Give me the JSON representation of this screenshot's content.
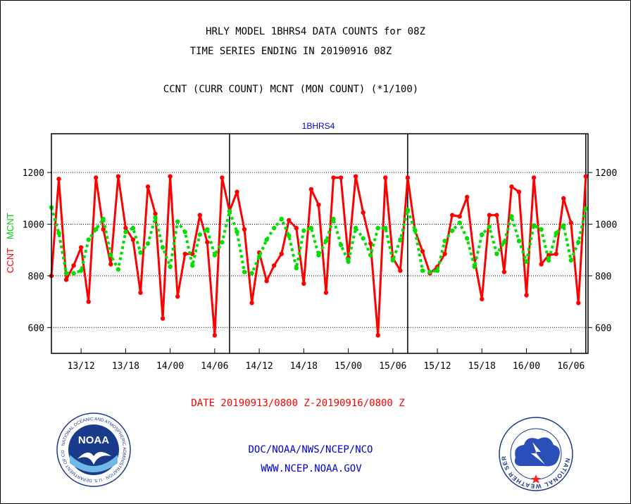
{
  "header": {
    "title_line1": "HRLY MODEL 1BHRS4 DATA COUNTS for 08Z",
    "title_line2": "TIME SERIES ENDING IN 20190916 08Z",
    "subtitle": "CCNT (CURR COUNT) MCNT (MON COUNT) (*1/100)"
  },
  "footer": {
    "date_range": "DATE 20190913/0800 Z-20190916/0800 Z",
    "org": "DOC/NOAA/NWS/NCEP/NCO",
    "url": "WWW.NCEP.NOAA.GOV"
  },
  "logos": {
    "noaa_text": "NOAA",
    "noaa_ring": "NATIONAL OCEANIC AND ATMOSPHERIC ADMINISTRATION · U.S. DEPARTMENT OF COMMERCE",
    "nws_ring": "NATIONAL WEATHER SERVICE"
  },
  "colors": {
    "ccnt": "#ff0000",
    "mcnt": "#00e000",
    "plot_title": "#0000cc",
    "footer_date": "#ff0000",
    "credits": "#0000cc"
  },
  "chart_data": {
    "type": "line",
    "title": "1BHRS4",
    "ylabel_left": [
      "CCNT",
      "MCNT"
    ],
    "ylim": [
      500,
      1350
    ],
    "yticks": [
      600,
      800,
      1000,
      1200
    ],
    "grid": "horizontal dotted lines at y ticks",
    "xlim": [
      8,
      80.3
    ],
    "xticks": [
      {
        "x": 12,
        "label": "13/12"
      },
      {
        "x": 18,
        "label": "13/18"
      },
      {
        "x": 24,
        "label": "14/00"
      },
      {
        "x": 30,
        "label": "14/06"
      },
      {
        "x": 36,
        "label": "14/12"
      },
      {
        "x": 42,
        "label": "14/18"
      },
      {
        "x": 48,
        "label": "15/00"
      },
      {
        "x": 54,
        "label": "15/06"
      },
      {
        "x": 60,
        "label": "15/12"
      },
      {
        "x": 66,
        "label": "15/18"
      },
      {
        "x": 72,
        "label": "16/00"
      },
      {
        "x": 78,
        "label": "16/06"
      }
    ],
    "day_separators": [
      32,
      56,
      80
    ],
    "x": [
      8,
      9,
      10,
      11,
      12,
      13,
      14,
      15,
      16,
      17,
      18,
      19,
      20,
      21,
      22,
      23,
      24,
      25,
      26,
      27,
      28,
      29,
      30,
      31,
      32,
      33,
      34,
      35,
      36,
      37,
      38,
      39,
      40,
      41,
      42,
      43,
      44,
      45,
      46,
      47,
      48,
      49,
      50,
      51,
      52,
      53,
      54,
      55,
      56,
      57,
      58,
      59,
      60,
      61,
      62,
      63,
      64,
      65,
      66,
      67,
      68,
      69,
      70,
      71,
      72,
      73,
      74,
      75,
      76,
      77,
      78,
      79,
      80
    ],
    "series": [
      {
        "name": "CCNT",
        "color": "#ff0000",
        "values": [
          800,
          1175,
          785,
          840,
          910,
          700,
          1180,
          980,
          845,
          1185,
          985,
          940,
          735,
          1145,
          1040,
          635,
          1185,
          720,
          885,
          885,
          1035,
          930,
          570,
          1180,
          1050,
          1125,
          980,
          695,
          890,
          780,
          840,
          885,
          1015,
          985,
          770,
          1135,
          1075,
          735,
          1180,
          1180,
          870,
          1185,
          1045,
          925,
          570,
          1180,
          870,
          820,
          1180,
          975,
          895,
          810,
          835,
          885,
          1035,
          1030,
          1105,
          865,
          710,
          1035,
          1035,
          815,
          1145,
          1125,
          725,
          1180,
          845,
          880,
          885,
          1100,
          1005,
          695,
          1185
        ]
      },
      {
        "name": "MCNT",
        "color": "#00e000",
        "values": [
          1065,
          965,
          810,
          810,
          820,
          940,
          980,
          1020,
          880,
          825,
          970,
          985,
          890,
          925,
          1025,
          910,
          835,
          1010,
          970,
          840,
          960,
          980,
          880,
          930,
          1050,
          970,
          815,
          810,
          875,
          940,
          985,
          1020,
          955,
          830,
          975,
          985,
          880,
          935,
          1020,
          920,
          855,
          985,
          945,
          880,
          985,
          985,
          860,
          940,
          1055,
          975,
          820,
          815,
          820,
          935,
          975,
          1005,
          945,
          835,
          960,
          990,
          885,
          930,
          1030,
          935,
          855,
          995,
          980,
          860,
          965,
          995,
          860,
          930,
          1060
        ]
      }
    ]
  }
}
